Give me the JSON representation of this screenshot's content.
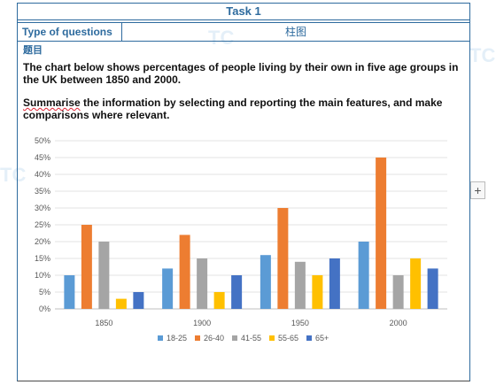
{
  "header": {
    "task_title": "Task 1",
    "type_label": "Type of questions",
    "type_value": "柱图"
  },
  "question": {
    "label": "题目",
    "prompt": "The chart below shows percentages of people living by their own in five age groups in the UK between 1850 and 2000.",
    "instruction_first_word": "Summarise",
    "instruction_rest": " the information by selecting and reporting the main features, and make comparisons where relevant."
  },
  "controls": {
    "add_label": "+"
  },
  "chart_data": {
    "type": "bar",
    "title": "",
    "xlabel": "",
    "ylabel": "",
    "categories": [
      "1850",
      "1900",
      "1950",
      "2000"
    ],
    "ylim": [
      0,
      50
    ],
    "yticks": [
      "0%",
      "5%",
      "10%",
      "15%",
      "20%",
      "25%",
      "30%",
      "35%",
      "40%",
      "45%",
      "50%"
    ],
    "grid": true,
    "legend_position": "bottom",
    "series": [
      {
        "name": "18-25",
        "color": "#5b9bd5",
        "values": [
          10,
          12,
          16,
          20
        ]
      },
      {
        "name": "26-40",
        "color": "#ed7d31",
        "values": [
          25,
          22,
          30,
          45
        ]
      },
      {
        "name": "41-55",
        "color": "#a5a5a5",
        "values": [
          20,
          15,
          14,
          10
        ]
      },
      {
        "name": "55-65",
        "color": "#ffc000",
        "values": [
          3,
          5,
          10,
          15
        ]
      },
      {
        "name": "65+",
        "color": "#4472c4",
        "values": [
          5,
          10,
          15,
          12
        ]
      }
    ]
  }
}
